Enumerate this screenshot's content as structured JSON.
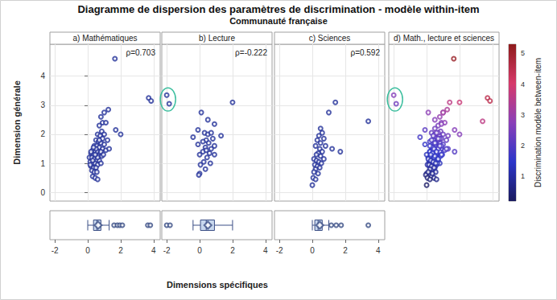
{
  "title": "Diagramme de dispersion des paramètres de discrimination - modèle within-item",
  "subtitle": "Communauté française",
  "xlabel": "Dimensions spécifiques",
  "ylabel": "Dimension générale",
  "chart_data": [
    {
      "type": "scatter",
      "title": "a) Mathématiques",
      "annotation": "ρ=0.703",
      "x": [
        1.65,
        3.7,
        3.85,
        1.25,
        1.0,
        0.8,
        0.9,
        1.1,
        2.0,
        1.7,
        0.7,
        0.85,
        1.0,
        0.6,
        0.75,
        0.9,
        1.2,
        0.5,
        0.65,
        0.8,
        1.0,
        0.4,
        0.55,
        0.7,
        0.9,
        1.1,
        0.3,
        0.45,
        0.6,
        0.75,
        0.2,
        0.35,
        0.5,
        0.65,
        0.85,
        0.1,
        0.25,
        0.4,
        0.55,
        0.7,
        0.15,
        0.3,
        0.45,
        0.6,
        0.8,
        0.2,
        0.35,
        0.5,
        0.25,
        0.4,
        0.55,
        0.3,
        0.45,
        0.6,
        0.2,
        0.5,
        0.35,
        0.6,
        0.8,
        0.95,
        0.3,
        0.45,
        0.7,
        1.3,
        0.15
      ],
      "y": [
        4.6,
        3.25,
        3.15,
        2.85,
        2.75,
        2.6,
        2.4,
        2.4,
        2.0,
        2.15,
        2.3,
        2.1,
        2.0,
        2.0,
        1.95,
        1.85,
        1.8,
        1.8,
        1.75,
        1.7,
        1.65,
        1.6,
        1.6,
        1.55,
        1.5,
        1.45,
        1.45,
        1.4,
        1.4,
        1.35,
        1.35,
        1.3,
        1.25,
        1.25,
        1.25,
        1.2,
        1.2,
        1.15,
        1.1,
        1.1,
        1.05,
        1.0,
        1.0,
        0.95,
        1.0,
        0.9,
        0.85,
        0.85,
        0.75,
        0.7,
        0.7,
        0.55,
        0.5,
        0.45,
        1.4,
        1.5,
        1.55,
        1.2,
        1.4,
        1.3,
        1.1,
        1.3,
        1.8,
        1.5,
        0.95
      ],
      "xlim": [
        -2.3,
        4.4
      ],
      "ylim": [
        -0.3,
        5.1
      ],
      "xticks": [
        -2,
        0,
        2,
        4
      ],
      "yticks": [
        0,
        1,
        2,
        3,
        4
      ],
      "color": "#25339a",
      "marker": "circle",
      "grid": true,
      "tick_labels": "y",
      "box": {
        "type": "boxplot",
        "min": 0.0,
        "q1": 0.35,
        "median": 0.55,
        "q3": 0.8,
        "max": 1.3,
        "mean": 0.63,
        "outliers": [
          1.6,
          1.8,
          1.95,
          2.1,
          3.65,
          3.8
        ],
        "xlim": [
          -2.3,
          4.4
        ],
        "xticks": [
          -2,
          0,
          2,
          4
        ],
        "color": "#c8d8ee"
      }
    },
    {
      "type": "scatter",
      "title": "b) Lecture",
      "annotation": "ρ=-0.222",
      "x": [
        -2.0,
        -1.85,
        2.0,
        0.1,
        0.5,
        0.9,
        -0.1,
        0.3,
        0.5,
        0.7,
        -0.4,
        0.8,
        0.4,
        0.2,
        0.55,
        0.9,
        -0.1,
        0.35,
        0.7,
        0.2,
        0.6,
        0.9,
        0.0,
        0.45,
        0.25,
        0.65,
        0.05,
        0.35,
        0.0,
        -0.05,
        0.4,
        1.3
      ],
      "y": [
        3.35,
        3.05,
        3.1,
        2.75,
        2.5,
        2.35,
        2.15,
        2.05,
        2.0,
        2.05,
        1.9,
        1.85,
        1.8,
        1.75,
        1.7,
        1.6,
        1.65,
        1.55,
        1.5,
        1.4,
        1.35,
        1.3,
        1.3,
        1.2,
        1.05,
        1.0,
        0.95,
        0.8,
        0.65,
        0.6,
        1.45,
        1.95
      ],
      "xlim": [
        -2.3,
        4.4
      ],
      "ylim": [
        -0.3,
        5.1
      ],
      "xticks": [
        -2,
        0,
        2,
        4
      ],
      "yticks": [
        0,
        1,
        2,
        3,
        4
      ],
      "color": "#25339a",
      "marker": "circle",
      "grid": true,
      "tick_labels": false,
      "box": {
        "type": "boxplot",
        "min": -0.4,
        "q1": 0.05,
        "median": 0.4,
        "q3": 0.9,
        "max": 2.0,
        "mean": 0.5,
        "outliers": [
          -2.0,
          -1.8
        ],
        "xlim": [
          -2.3,
          4.4
        ],
        "xticks": [
          -2,
          0,
          2,
          4
        ],
        "color": "#c8d8ee"
      }
    },
    {
      "type": "scatter",
      "title": "c) Sciences",
      "annotation": "ρ=0.592",
      "x": [
        1.4,
        3.4,
        1.0,
        0.5,
        0.6,
        0.4,
        0.7,
        0.3,
        0.5,
        0.8,
        0.2,
        0.45,
        1.2,
        0.6,
        0.35,
        1.7,
        0.1,
        0.25,
        0.4,
        0.55,
        0.15,
        0.3,
        0.45,
        0.2,
        0.1,
        0.35,
        0.05,
        0.2,
        0.0,
        0.5,
        0.7,
        0.25
      ],
      "y": [
        3.1,
        2.45,
        2.75,
        2.2,
        2.05,
        1.95,
        1.85,
        1.8,
        1.7,
        1.6,
        1.6,
        1.5,
        1.5,
        1.4,
        1.35,
        1.4,
        1.15,
        1.1,
        1.05,
        1.0,
        0.95,
        0.9,
        0.85,
        0.8,
        0.7,
        0.65,
        0.5,
        0.45,
        0.25,
        1.25,
        1.15,
        1.3
      ],
      "xlim": [
        -2.3,
        4.4
      ],
      "ylim": [
        -0.3,
        5.1
      ],
      "xticks": [
        -2,
        0,
        2,
        4
      ],
      "yticks": [
        0,
        1,
        2,
        3,
        4
      ],
      "color": "#25339a",
      "marker": "circle",
      "grid": true,
      "tick_labels": false,
      "box": {
        "type": "boxplot",
        "min": 0.0,
        "q1": 0.15,
        "median": 0.35,
        "q3": 0.6,
        "max": 1.0,
        "mean": 0.45,
        "outliers": [
          1.15,
          1.45,
          1.75,
          3.4
        ],
        "xlim": [
          -2.3,
          4.4
        ],
        "xticks": [
          -2,
          0,
          2,
          4
        ],
        "color": "#c8d8ee"
      }
    },
    {
      "type": "scatter",
      "title": "d) Math., lecture et sciences",
      "x": [
        1.65,
        3.7,
        3.85,
        1.25,
        1.0,
        0.8,
        0.9,
        1.1,
        2.0,
        1.7,
        0.7,
        0.85,
        1.0,
        0.6,
        0.75,
        0.9,
        1.2,
        0.5,
        0.65,
        0.8,
        1.0,
        0.4,
        0.55,
        0.7,
        0.9,
        1.1,
        0.3,
        0.45,
        0.6,
        0.75,
        0.2,
        0.35,
        0.5,
        0.65,
        0.85,
        0.1,
        0.25,
        0.4,
        0.55,
        0.7,
        0.15,
        0.3,
        0.45,
        0.6,
        0.8,
        0.2,
        0.35,
        0.5,
        0.25,
        0.4,
        0.55,
        0.3,
        0.45,
        0.6,
        0.2,
        0.5,
        0.35,
        0.6,
        0.8,
        0.95,
        0.3,
        0.45,
        0.7,
        1.3,
        0.15,
        -2.0,
        -1.85,
        2.0,
        0.1,
        0.5,
        0.9,
        -0.1,
        0.3,
        0.5,
        0.7,
        -0.4,
        0.8,
        0.4,
        0.2,
        0.55,
        0.9,
        -0.1,
        0.35,
        0.7,
        0.2,
        0.6,
        0.9,
        0.0,
        0.45,
        0.25,
        0.65,
        0.05,
        0.35,
        0.0,
        -0.05,
        0.4,
        1.3,
        1.4,
        3.4,
        1.0,
        0.5,
        0.6,
        0.4,
        0.7,
        0.3,
        0.5,
        0.8,
        0.2,
        0.45,
        1.2,
        0.6,
        0.35,
        1.7,
        0.1,
        0.25,
        0.4,
        0.55,
        0.15,
        0.3,
        0.45,
        0.2,
        0.1,
        0.35,
        0.05,
        0.2,
        0.0,
        0.5,
        0.7,
        0.25
      ],
      "y": [
        4.6,
        3.25,
        3.15,
        2.85,
        2.75,
        2.6,
        2.4,
        2.4,
        2.0,
        2.15,
        2.3,
        2.1,
        2.0,
        2.0,
        1.95,
        1.85,
        1.8,
        1.8,
        1.75,
        1.7,
        1.65,
        1.6,
        1.6,
        1.55,
        1.5,
        1.45,
        1.45,
        1.4,
        1.4,
        1.35,
        1.35,
        1.3,
        1.25,
        1.25,
        1.25,
        1.2,
        1.2,
        1.15,
        1.1,
        1.1,
        1.05,
        1.0,
        1.0,
        0.95,
        1.0,
        0.9,
        0.85,
        0.85,
        0.75,
        0.7,
        0.7,
        0.55,
        0.5,
        0.45,
        1.4,
        1.5,
        1.55,
        1.2,
        1.4,
        1.3,
        1.1,
        1.3,
        1.8,
        1.5,
        0.95,
        3.35,
        3.05,
        3.1,
        2.75,
        2.5,
        2.35,
        2.15,
        2.05,
        2.0,
        2.05,
        1.9,
        1.85,
        1.8,
        1.75,
        1.7,
        1.6,
        1.65,
        1.55,
        1.5,
        1.4,
        1.35,
        1.3,
        1.3,
        1.2,
        1.05,
        1.0,
        0.95,
        0.8,
        0.65,
        0.6,
        1.45,
        1.95,
        3.1,
        2.45,
        2.75,
        2.2,
        2.05,
        1.95,
        1.85,
        1.8,
        1.7,
        1.6,
        1.6,
        1.5,
        1.5,
        1.4,
        1.35,
        1.4,
        1.15,
        1.1,
        1.05,
        1.0,
        0.95,
        0.9,
        0.85,
        0.8,
        0.7,
        0.65,
        0.5,
        0.45,
        0.25,
        1.25,
        1.15,
        1.3
      ],
      "between_item": [
        5.1,
        4.5,
        4.5,
        3.3,
        3.1,
        2.9,
        2.7,
        2.8,
        2.7,
        2.7,
        2.5,
        2.4,
        2.3,
        2.2,
        2.2,
        2.2,
        2.2,
        2.0,
        2.0,
        2.0,
        2.0,
        1.7,
        1.8,
        1.8,
        1.8,
        1.8,
        1.6,
        1.6,
        1.6,
        1.6,
        1.4,
        1.4,
        1.4,
        1.5,
        1.5,
        1.2,
        1.3,
        1.3,
        1.3,
        1.3,
        1.1,
        1.1,
        1.2,
        1.2,
        1.3,
        1.0,
        1.0,
        1.0,
        0.8,
        0.8,
        0.9,
        0.7,
        0.7,
        0.7,
        1.5,
        1.7,
        1.7,
        1.4,
        1.7,
        1.6,
        1.2,
        1.5,
        2.1,
        2.0,
        1.0,
        2.7,
        2.4,
        3.8,
        2.8,
        2.7,
        2.7,
        2.1,
        2.2,
        2.2,
        2.3,
        1.8,
        2.1,
        1.9,
        1.8,
        1.9,
        1.9,
        1.6,
        1.7,
        1.8,
        1.5,
        1.6,
        1.6,
        1.3,
        1.4,
        1.1,
        1.2,
        1.0,
        0.9,
        0.7,
        0.6,
        1.6,
        2.4,
        3.6,
        3.6,
        3.1,
        2.4,
        2.3,
        2.1,
        2.1,
        1.9,
        1.9,
        1.9,
        1.7,
        1.7,
        1.9,
        1.6,
        1.5,
        2.0,
        1.2,
        1.2,
        1.2,
        1.2,
        1.0,
        1.0,
        1.0,
        0.9,
        0.7,
        0.8,
        0.5,
        0.5,
        0.3,
        1.4,
        1.4,
        1.4
      ],
      "xlim": [
        -2.3,
        4.4
      ],
      "ylim": [
        -0.3,
        5.1
      ],
      "xticks": [
        -2,
        0,
        2,
        4
      ],
      "yticks": [
        0,
        1,
        2,
        3,
        4
      ],
      "marker": "circle",
      "grid": true,
      "tick_labels": false,
      "colorbar": {
        "label": "Discrimination modèle between-item",
        "range": [
          0.2,
          5.3
        ],
        "ticks": [
          1,
          2,
          3,
          4,
          5
        ],
        "colors": [
          "#1a1a5e",
          "#2b35c9",
          "#8a3fb8",
          "#d63a6a",
          "#8e1b1b"
        ]
      }
    }
  ]
}
